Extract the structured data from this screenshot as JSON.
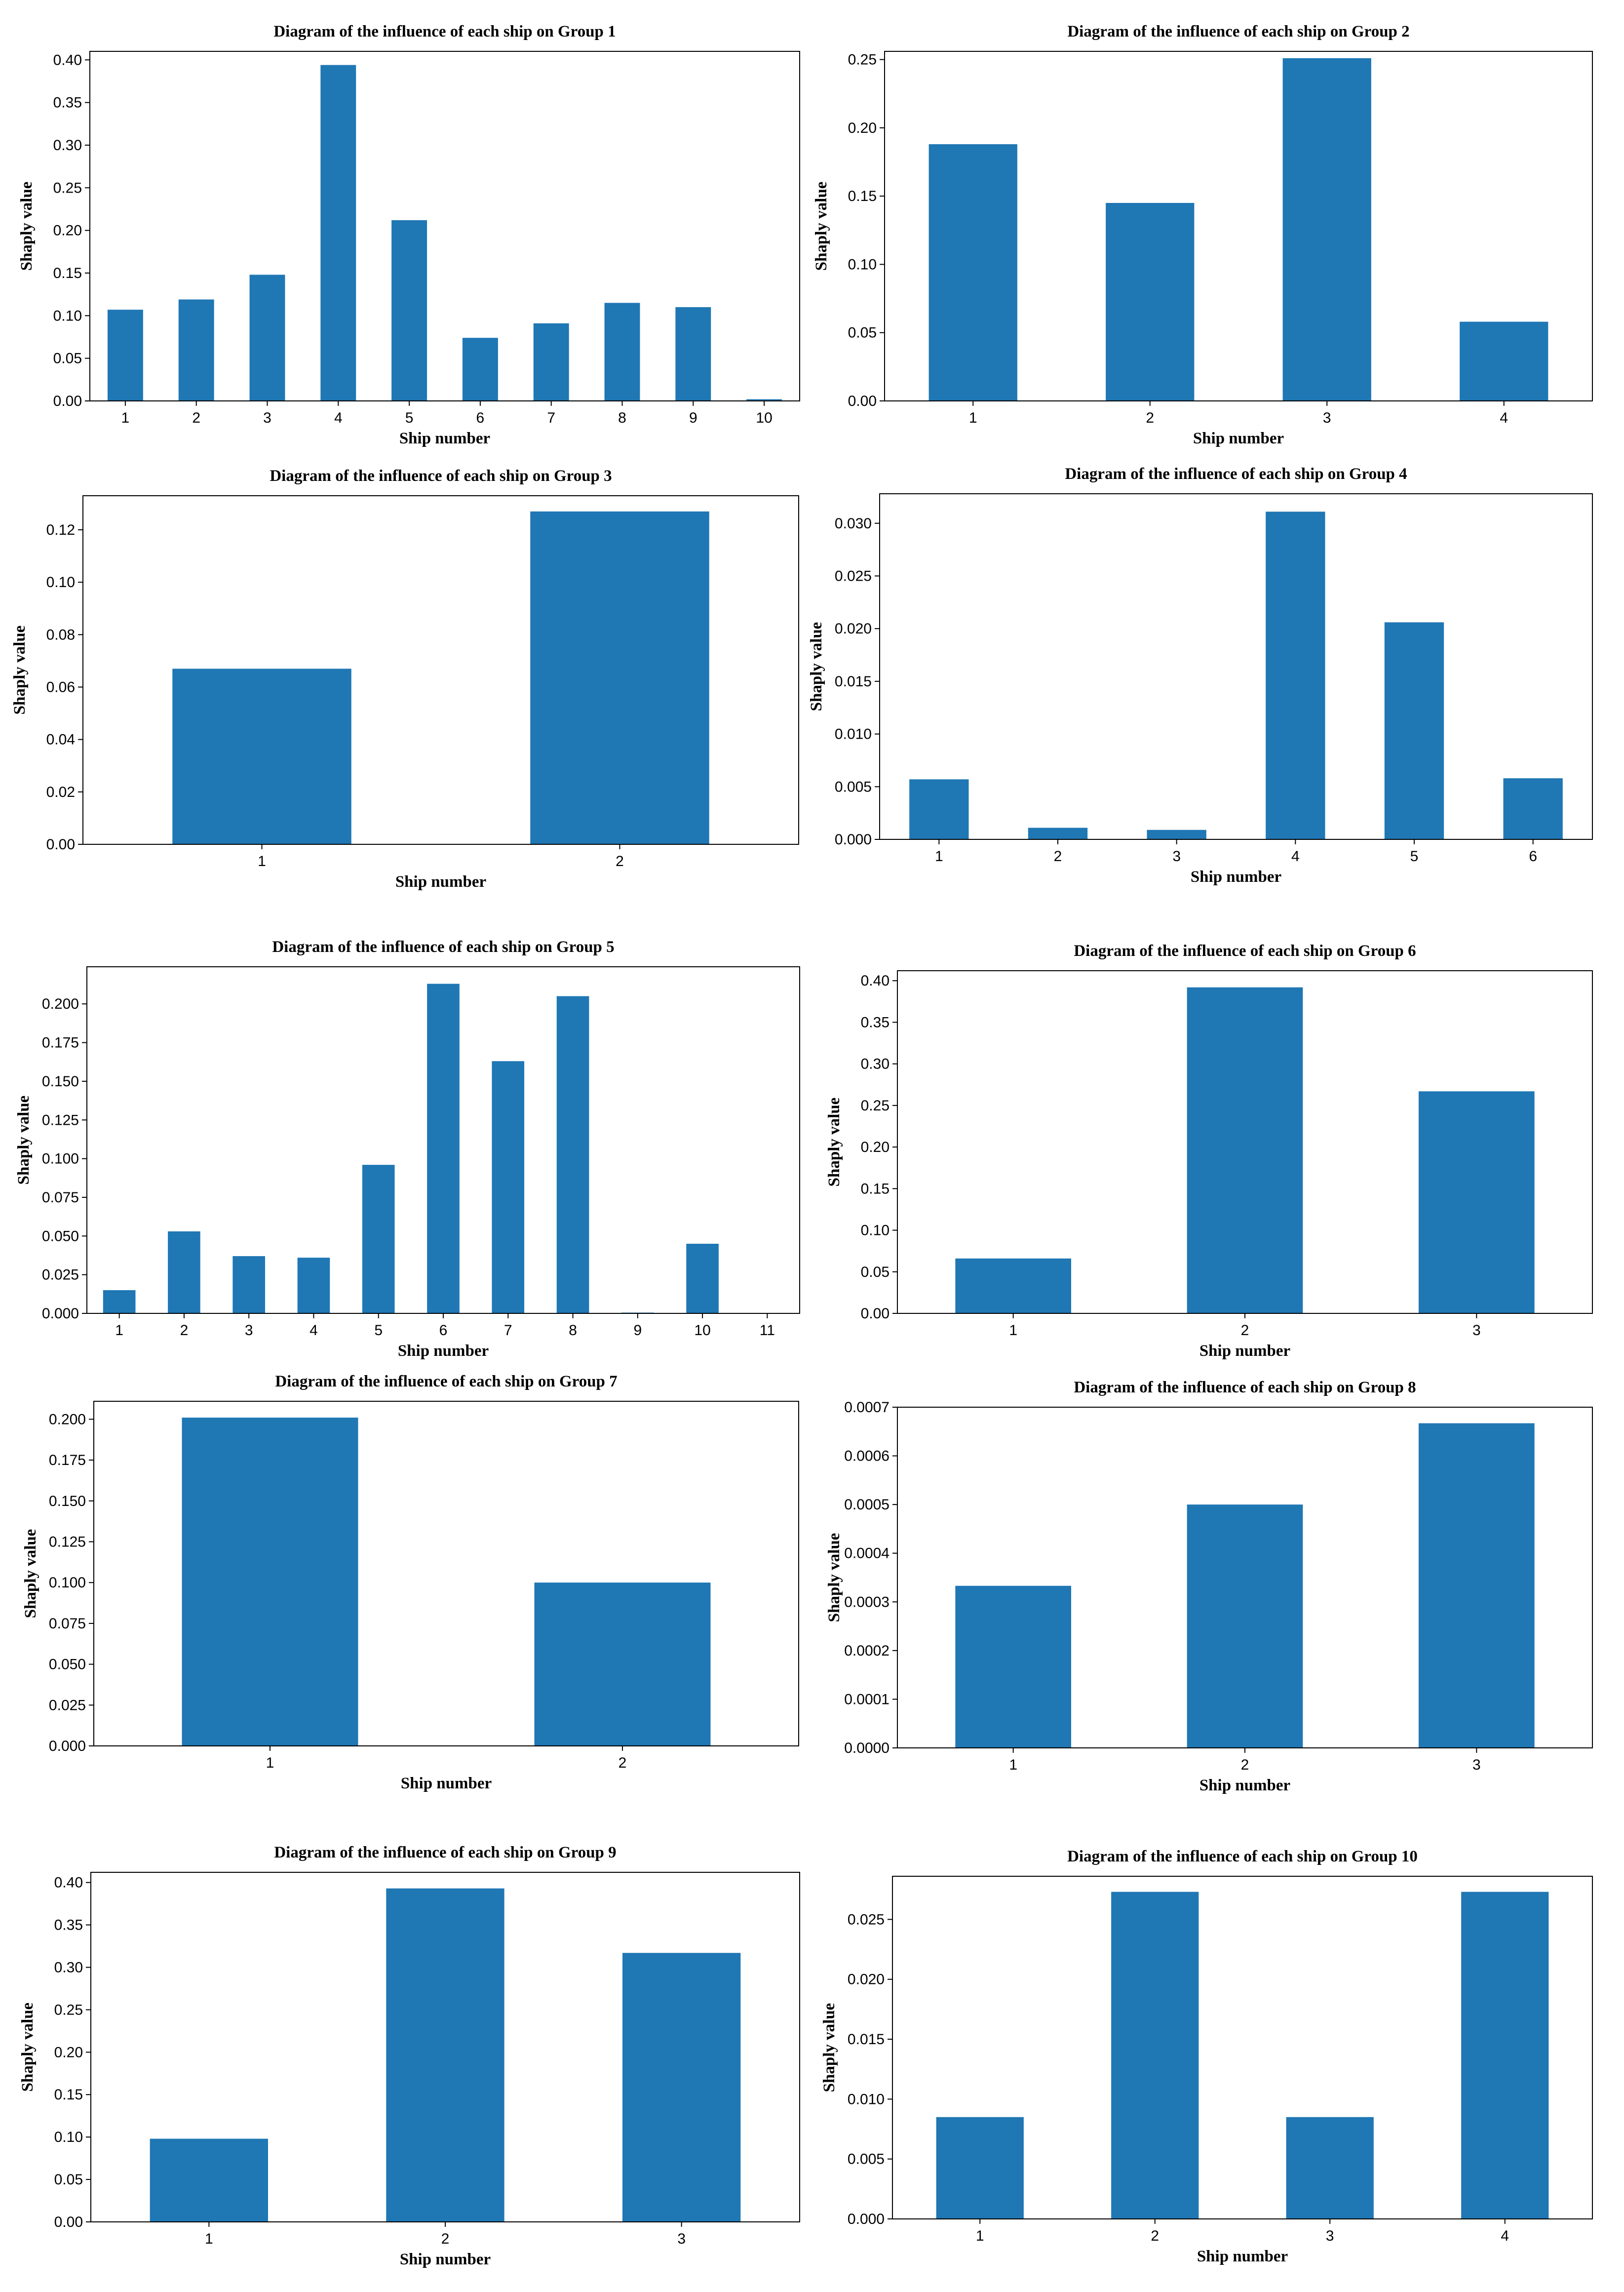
{
  "chart_data": [
    {
      "type": "bar",
      "title": "Diagram of the influence of each ship on Group 1",
      "xlabel": "Ship number",
      "ylabel": "Shaply value",
      "categories": [
        "1",
        "2",
        "3",
        "4",
        "5",
        "6",
        "7",
        "8",
        "9",
        "10"
      ],
      "values": [
        0.107,
        0.119,
        0.148,
        0.394,
        0.212,
        0.074,
        0.091,
        0.115,
        0.11,
        0.002
      ],
      "ylim": [
        0,
        0.41
      ],
      "yticks": [
        "0.00",
        "0.05",
        "0.10",
        "0.15",
        "0.20",
        "0.25",
        "0.30",
        "0.35",
        "0.40"
      ],
      "bar_color": "#1f77b4",
      "grid": false
    },
    {
      "type": "bar",
      "title": "Diagram of the influence of each ship on Group 2",
      "xlabel": "Ship number",
      "ylabel": "Shaply value",
      "categories": [
        "1",
        "2",
        "3",
        "4"
      ],
      "values": [
        0.188,
        0.145,
        0.251,
        0.058
      ],
      "ylim": [
        0,
        0.256
      ],
      "yticks": [
        "0.00",
        "0.05",
        "0.10",
        "0.15",
        "0.20",
        "0.25"
      ],
      "bar_color": "#1f77b4",
      "grid": false
    },
    {
      "type": "bar",
      "title": "Diagram of the influence of each ship on Group 3",
      "xlabel": "Ship number",
      "ylabel": "Shaply value",
      "categories": [
        "1",
        "2"
      ],
      "values": [
        0.067,
        0.127
      ],
      "ylim": [
        0,
        0.133
      ],
      "yticks": [
        "0.00",
        "0.02",
        "0.04",
        "0.06",
        "0.08",
        "0.10",
        "0.12"
      ],
      "bar_color": "#1f77b4",
      "grid": false
    },
    {
      "type": "bar",
      "title": "Diagram of the influence of each ship on Group 4",
      "xlabel": "Ship number",
      "ylabel": "Shaply value",
      "categories": [
        "1",
        "2",
        "3",
        "4",
        "5",
        "6"
      ],
      "values": [
        0.0057,
        0.0011,
        0.0009,
        0.0311,
        0.0206,
        0.0058
      ],
      "ylim": [
        0,
        0.0328
      ],
      "yticks": [
        "0.000",
        "0.005",
        "0.010",
        "0.015",
        "0.020",
        "0.025",
        "0.030"
      ],
      "bar_color": "#1f77b4",
      "grid": false
    },
    {
      "type": "bar",
      "title": "Diagram of the influence of each ship on Group 5",
      "xlabel": "Ship number",
      "ylabel": "Shaply value",
      "categories": [
        "1",
        "2",
        "3",
        "4",
        "5",
        "6",
        "7",
        "8",
        "9",
        "10",
        "11"
      ],
      "values": [
        0.015,
        0.053,
        0.037,
        0.036,
        0.096,
        0.213,
        0.163,
        0.205,
        0.0005,
        0.045,
        0.0
      ],
      "ylim": [
        0,
        0.224
      ],
      "yticks": [
        "0.000",
        "0.025",
        "0.050",
        "0.075",
        "0.100",
        "0.125",
        "0.150",
        "0.175",
        "0.200"
      ],
      "bar_color": "#1f77b4",
      "grid": false
    },
    {
      "type": "bar",
      "title": "Diagram of the influence of each ship on Group 6",
      "xlabel": "Ship number",
      "ylabel": "Shaply value",
      "categories": [
        "1",
        "2",
        "3"
      ],
      "values": [
        0.066,
        0.392,
        0.267
      ],
      "ylim": [
        0,
        0.412
      ],
      "yticks": [
        "0.00",
        "0.05",
        "0.10",
        "0.15",
        "0.20",
        "0.25",
        "0.30",
        "0.35",
        "0.40"
      ],
      "bar_color": "#1f77b4",
      "grid": false
    },
    {
      "type": "bar",
      "title": "Diagram of the influence of each ship on Group 7",
      "xlabel": "Ship number",
      "ylabel": "Shaply value",
      "categories": [
        "1",
        "2"
      ],
      "values": [
        0.201,
        0.1
      ],
      "ylim": [
        0,
        0.211
      ],
      "yticks": [
        "0.000",
        "0.025",
        "0.050",
        "0.075",
        "0.100",
        "0.125",
        "0.150",
        "0.175",
        "0.200"
      ],
      "bar_color": "#1f77b4",
      "grid": false
    },
    {
      "type": "bar",
      "title": "Diagram of the influence of each ship on Group 8",
      "xlabel": "Ship number",
      "ylabel": "Shaply value",
      "categories": [
        "1",
        "2",
        "3"
      ],
      "values": [
        0.000333,
        0.0005,
        0.000667
      ],
      "ylim": [
        0,
        0.0007
      ],
      "yticks": [
        "0.0000",
        "0.0001",
        "0.0002",
        "0.0003",
        "0.0004",
        "0.0005",
        "0.0006",
        "0.0007"
      ],
      "bar_color": "#1f77b4",
      "grid": false
    },
    {
      "type": "bar",
      "title": "Diagram of the influence of each ship on Group 9",
      "xlabel": "Ship number",
      "ylabel": "Shaply value",
      "categories": [
        "1",
        "2",
        "3"
      ],
      "values": [
        0.098,
        0.393,
        0.317
      ],
      "ylim": [
        0,
        0.412
      ],
      "yticks": [
        "0.00",
        "0.05",
        "0.10",
        "0.15",
        "0.20",
        "0.25",
        "0.30",
        "0.35",
        "0.40"
      ],
      "bar_color": "#1f77b4",
      "grid": false
    },
    {
      "type": "bar",
      "title": "Diagram of the influence of each ship on Group 10",
      "xlabel": "Ship number",
      "ylabel": "Shaply value",
      "categories": [
        "1",
        "2",
        "3",
        "4"
      ],
      "values": [
        0.0085,
        0.0273,
        0.0085,
        0.0273
      ],
      "ylim": [
        0,
        0.0286
      ],
      "yticks": [
        "0.000",
        "0.005",
        "0.010",
        "0.015",
        "0.020",
        "0.025"
      ],
      "bar_color": "#1f77b4",
      "grid": false
    }
  ]
}
